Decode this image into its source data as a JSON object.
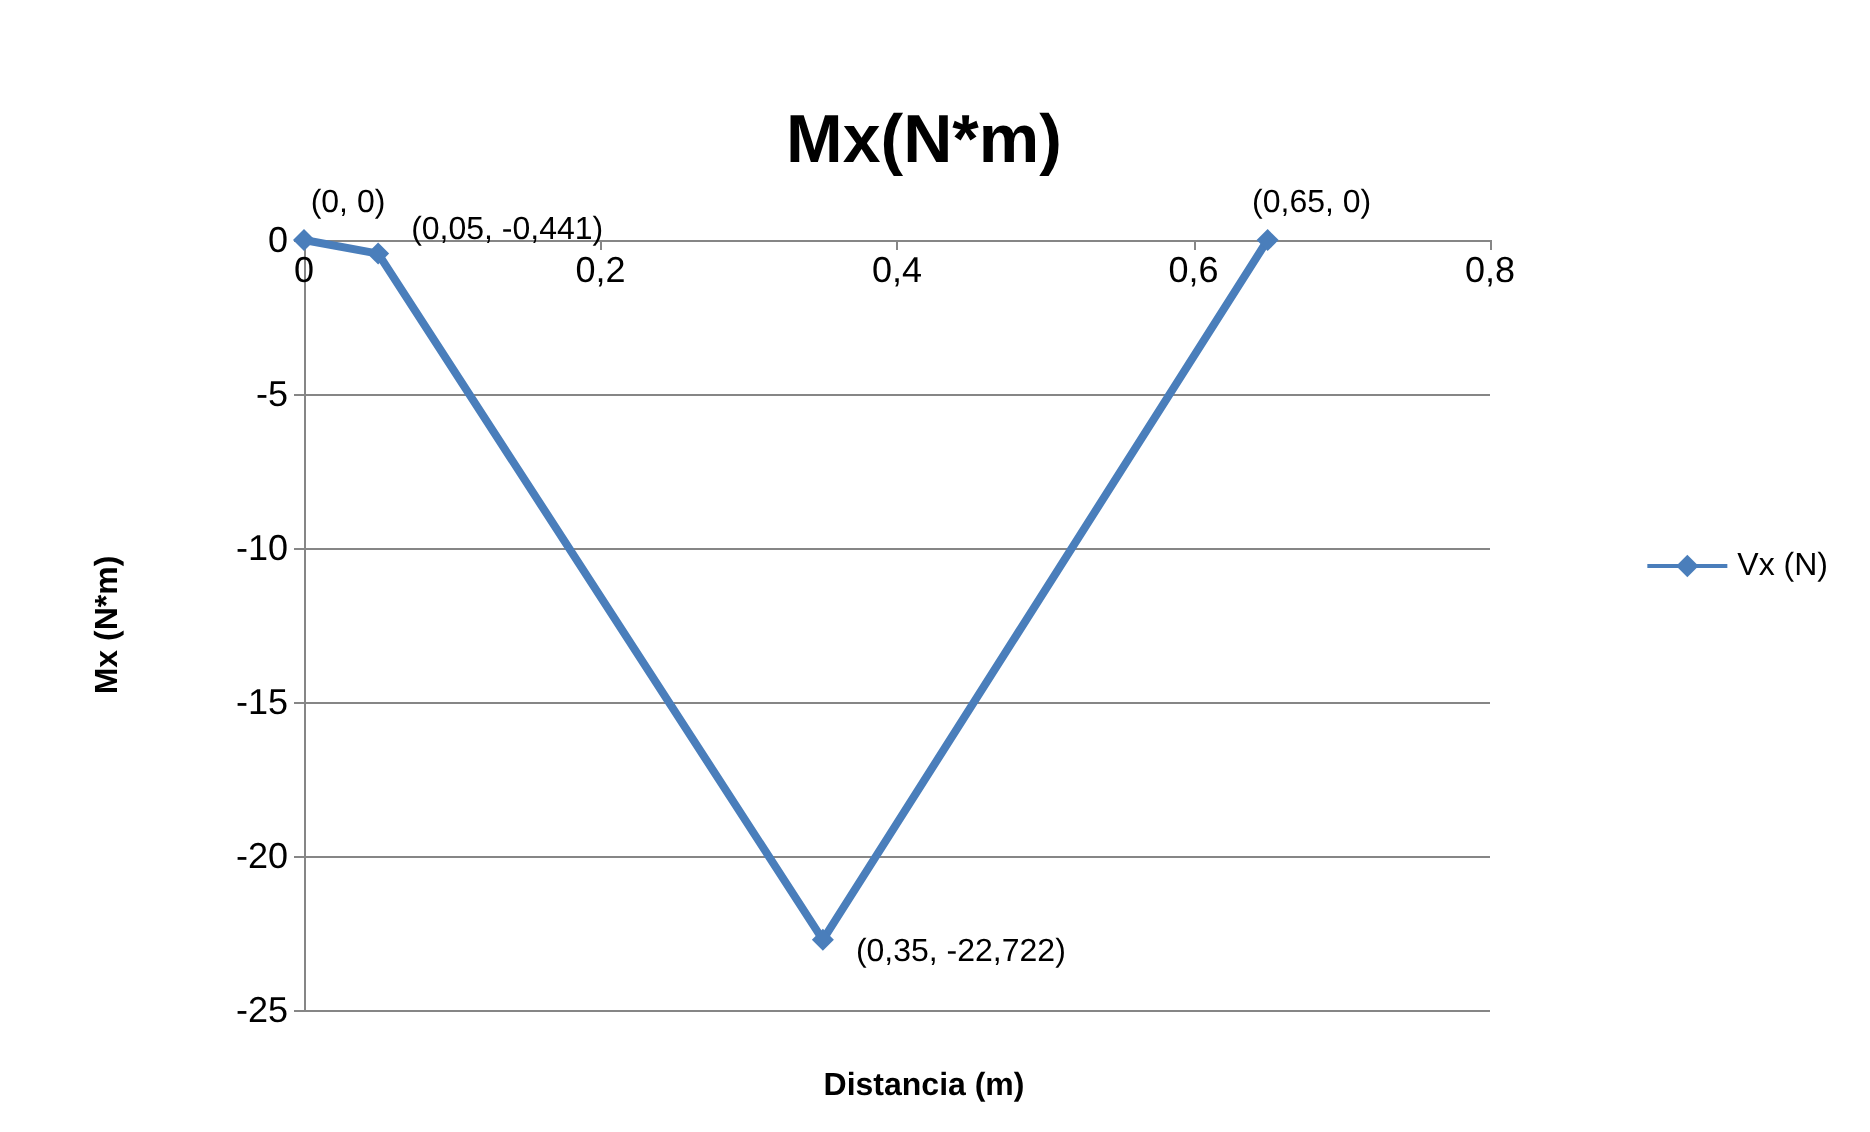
{
  "chart_data": {
    "type": "line",
    "title": "Mx(N*m)",
    "xlabel": "Distancia (m)",
    "ylabel": "Mx (N*m)",
    "x": [
      0,
      0.05,
      0.35,
      0.65
    ],
    "series": [
      {
        "name": "Vx (N)",
        "color": "#4a7ebb",
        "values": [
          0,
          -0.441,
          -22.722,
          0
        ],
        "value_labels": [
          "(0, 0)",
          "(0,05, -0,441)",
          "(0,35, -22,722)",
          "(0,65, 0)"
        ]
      }
    ],
    "xlim": [
      0,
      0.8
    ],
    "xticks": [
      0,
      {
        "value": 0.2,
        "label": "0,2"
      },
      {
        "value": 0.4,
        "label": "0,4"
      },
      {
        "value": 0.6,
        "label": "0,6"
      },
      {
        "value": 0.8,
        "label": "0,8"
      }
    ],
    "ylim": [
      -25,
      0
    ],
    "yticks": [
      0,
      -5,
      -10,
      -15,
      -20,
      -25
    ],
    "grid": "y",
    "legend": "right",
    "marker": "diamond",
    "line_style": "solid"
  }
}
